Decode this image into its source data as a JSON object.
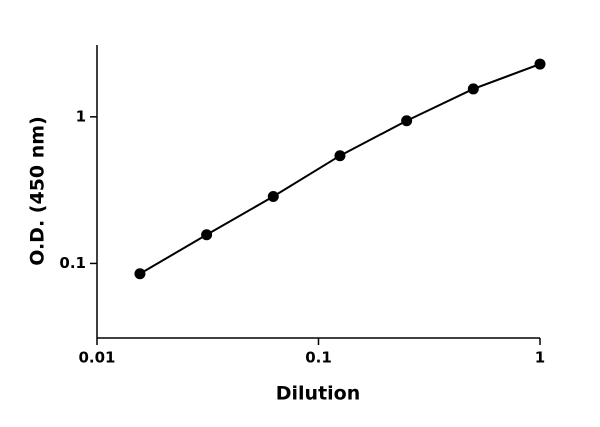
{
  "chart_data": {
    "type": "line",
    "x_label": "Dilution",
    "y_label": "O.D. (450 nm)",
    "x": [
      0.015625,
      0.03125,
      0.0625,
      0.125,
      0.25,
      0.5,
      1
    ],
    "series": [
      {
        "color": "#000000",
        "values": [
          0.085,
          0.157,
          0.286,
          0.543,
          0.94,
          1.55,
          2.29
        ]
      }
    ],
    "xlim": [
      0.01,
      1
    ],
    "xticks": [
      0.01,
      0.1,
      1
    ],
    "x_log": true,
    "ylim": [
      0.031,
      3.09
    ],
    "yticks": [
      0.1,
      1
    ],
    "y_log": true,
    "grid": false
  }
}
